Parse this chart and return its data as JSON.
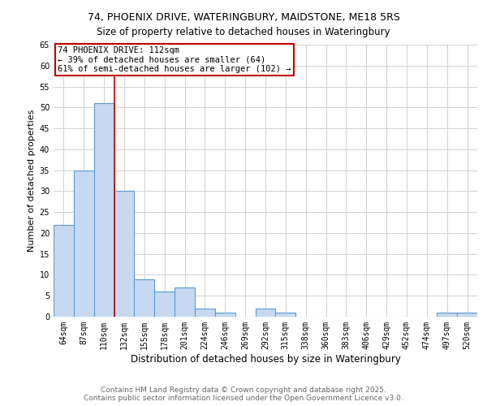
{
  "title1": "74, PHOENIX DRIVE, WATERINGBURY, MAIDSTONE, ME18 5RS",
  "title2": "Size of property relative to detached houses in Wateringbury",
  "xlabel": "Distribution of detached houses by size in Wateringbury",
  "ylabel": "Number of detached properties",
  "categories": [
    "64sqm",
    "87sqm",
    "110sqm",
    "132sqm",
    "155sqm",
    "178sqm",
    "201sqm",
    "224sqm",
    "246sqm",
    "269sqm",
    "292sqm",
    "315sqm",
    "338sqm",
    "360sqm",
    "383sqm",
    "406sqm",
    "429sqm",
    "452sqm",
    "474sqm",
    "497sqm",
    "520sqm"
  ],
  "values": [
    22,
    35,
    51,
    30,
    9,
    6,
    7,
    2,
    1,
    0,
    2,
    1,
    0,
    0,
    0,
    0,
    0,
    0,
    0,
    1,
    1
  ],
  "bar_color": "#c6d9f0",
  "bar_edge_color": "#5b9bd5",
  "vline_color": "#c00000",
  "annotation_text": "74 PHOENIX DRIVE: 112sqm\n← 39% of detached houses are smaller (64)\n61% of semi-detached houses are larger (102) →",
  "annotation_box_color": "#ffffff",
  "annotation_box_edge": "#c00000",
  "footer1": "Contains HM Land Registry data © Crown copyright and database right 2025.",
  "footer2": "Contains public sector information licensed under the Open Government Licence v3.0.",
  "ylim": [
    0,
    65
  ],
  "yticks": [
    0,
    5,
    10,
    15,
    20,
    25,
    30,
    35,
    40,
    45,
    50,
    55,
    60,
    65
  ],
  "title1_fontsize": 9,
  "title2_fontsize": 8.5,
  "xlabel_fontsize": 8.5,
  "ylabel_fontsize": 8,
  "tick_fontsize": 7,
  "footer_fontsize": 6.5,
  "annotation_fontsize": 7.5
}
